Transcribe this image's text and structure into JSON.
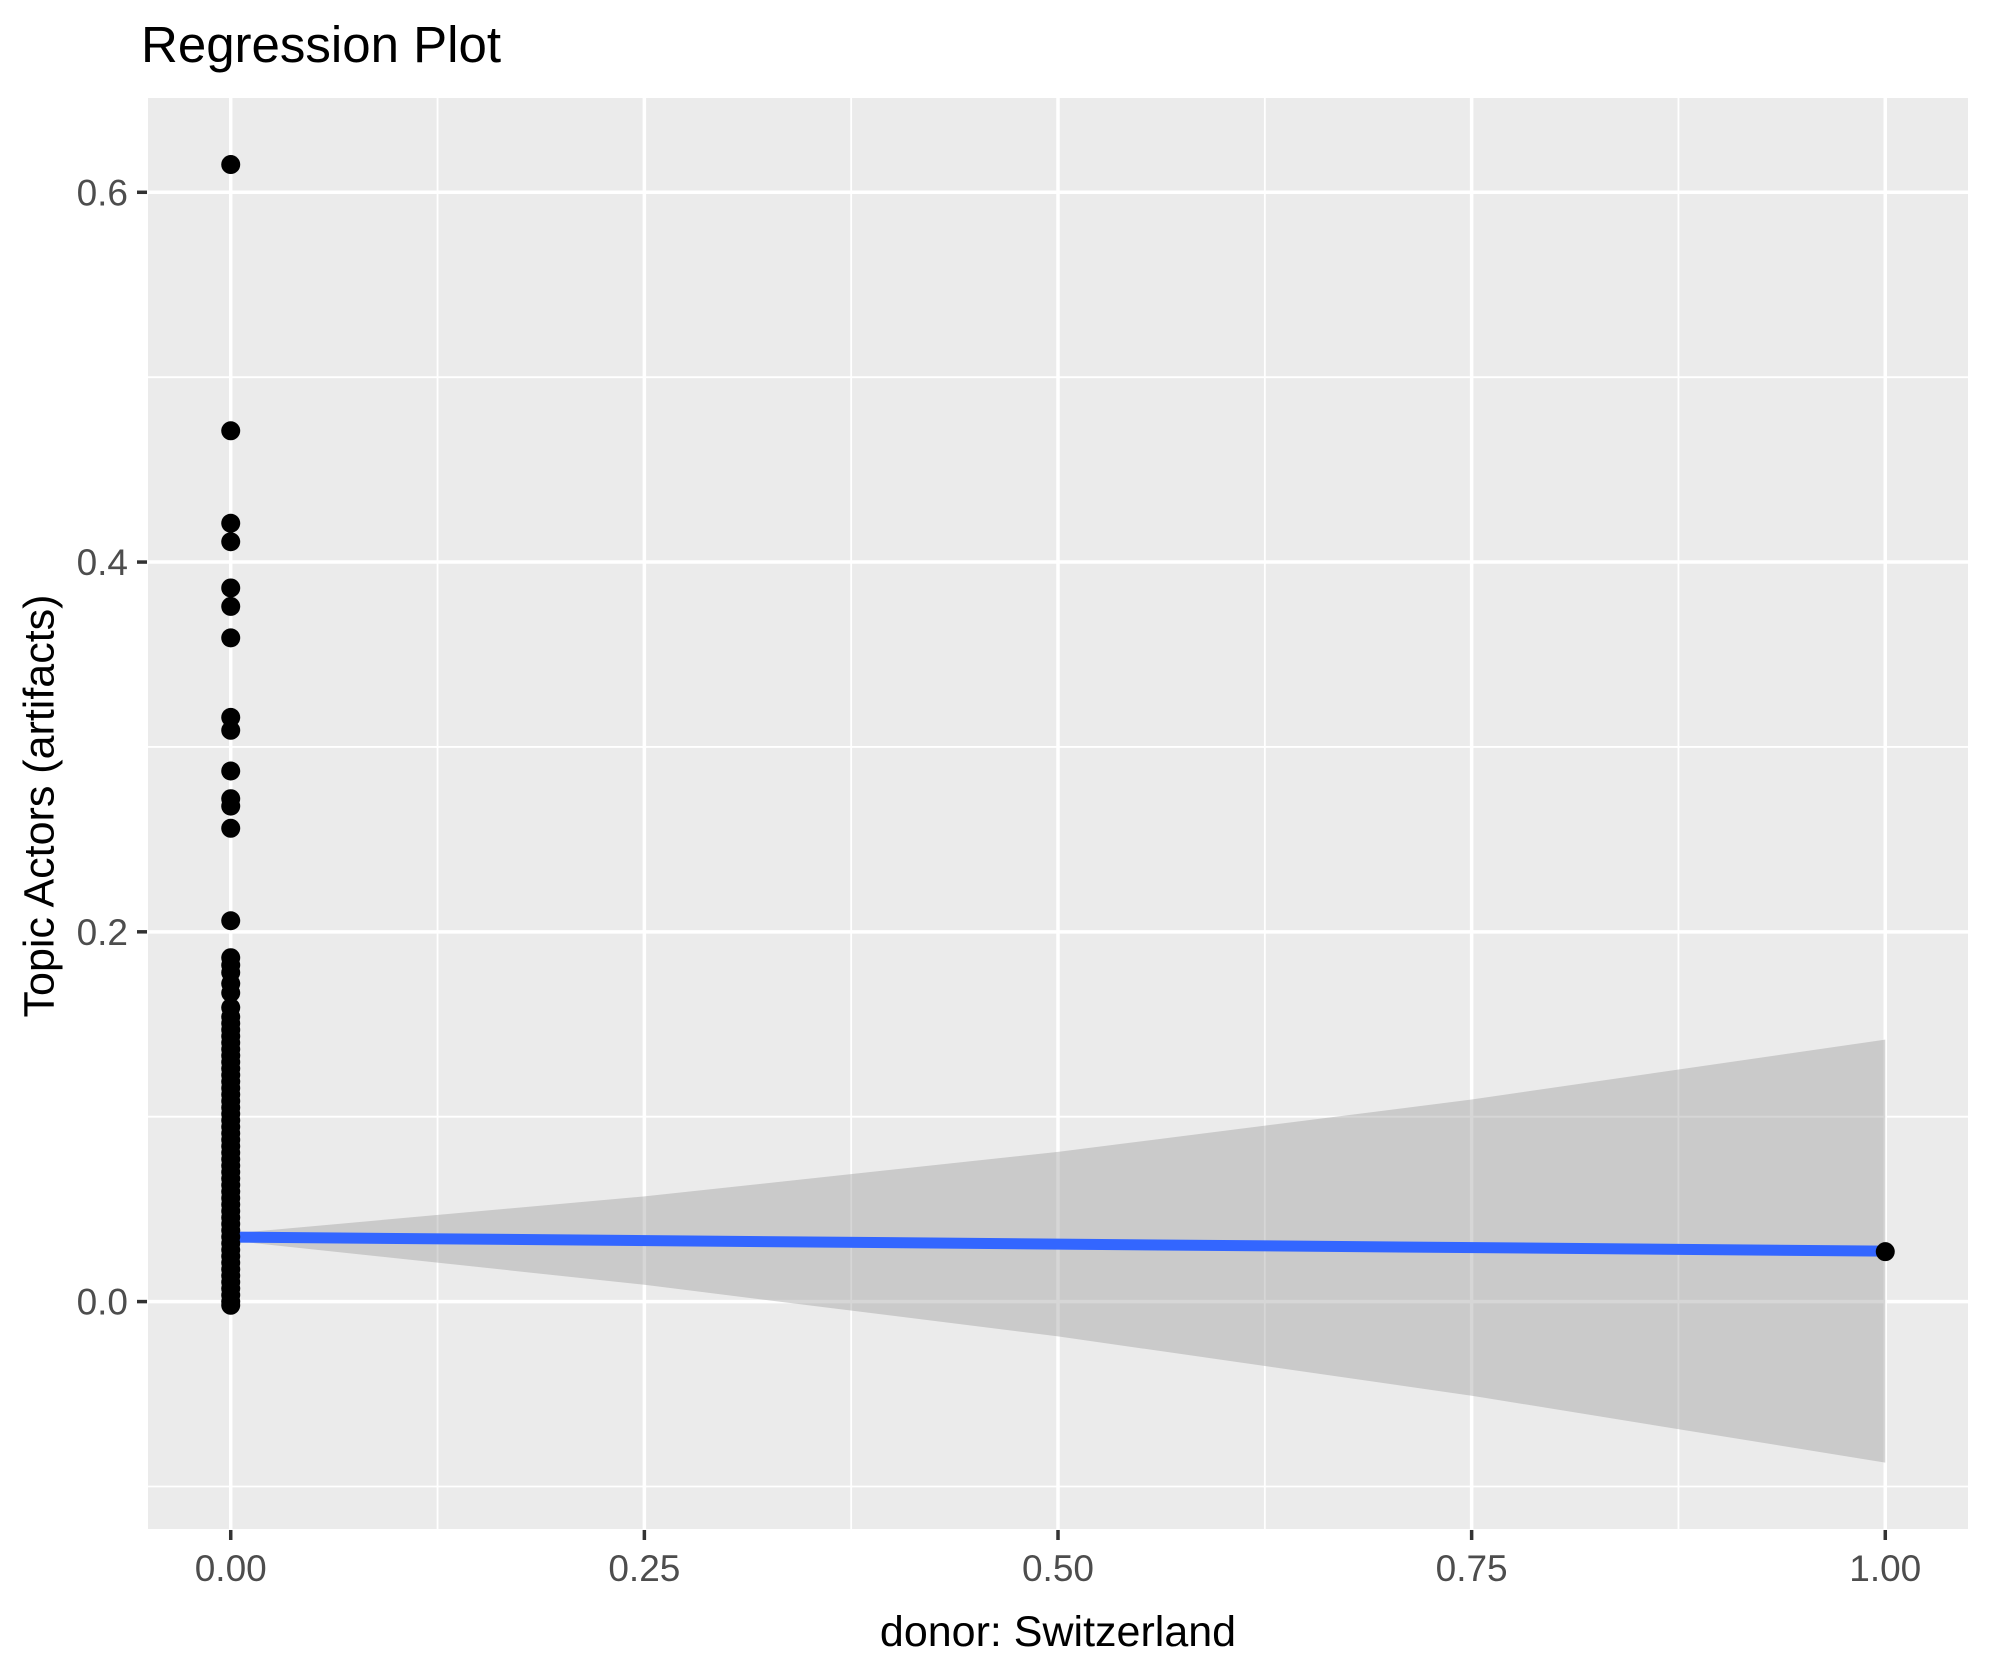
{
  "title": "Regression Plot",
  "chart_data": {
    "type": "scatter",
    "title": "Regression Plot",
    "xlabel": "donor: Switzerland",
    "ylabel": "Topic Actors (artifacts)",
    "xlim": [
      -0.05,
      1.05
    ],
    "ylim": [
      -0.123,
      0.651
    ],
    "grid": true,
    "legend_position": "none",
    "panel_bg": "#EBEBEB",
    "grid_color": "#FFFFFF",
    "tick_color": "#333333",
    "tick_label_color": "#4D4D4D",
    "point_color": "#000000",
    "line_color": "#3366FF",
    "band_color": "rgba(153,153,153,0.4)",
    "x_ticks": {
      "values": [
        0,
        0.25,
        0.5,
        0.75,
        1.0
      ],
      "labels": [
        "0.00",
        "0.25",
        "0.50",
        "0.75",
        "1.00"
      ]
    },
    "y_ticks": {
      "values": [
        0,
        0.2,
        0.4,
        0.6
      ],
      "labels": [
        "0.0",
        "0.2",
        "0.4",
        "0.6"
      ]
    },
    "x_minor": [
      0.125,
      0.375,
      0.625,
      0.875
    ],
    "y_minor": [
      -0.1,
      0.1,
      0.3,
      0.5
    ],
    "points": [
      [
        0,
        0.615
      ],
      [
        0,
        0.471
      ],
      [
        0,
        0.421
      ],
      [
        0,
        0.411
      ],
      [
        0,
        0.386
      ],
      [
        0,
        0.376
      ],
      [
        0,
        0.359
      ],
      [
        0,
        0.316
      ],
      [
        0,
        0.309
      ],
      [
        0,
        0.287
      ],
      [
        0,
        0.272
      ],
      [
        0,
        0.268
      ],
      [
        0,
        0.256
      ],
      [
        0,
        0.206
      ],
      [
        0,
        0.186
      ],
      [
        0,
        0.182
      ],
      [
        0,
        0.178
      ],
      [
        0,
        0.172
      ],
      [
        0,
        0.167
      ],
      [
        0,
        0.159
      ],
      [
        0,
        0.154
      ],
      [
        0,
        0.1505
      ],
      [
        0,
        0.147
      ],
      [
        0,
        0.1435
      ],
      [
        0,
        0.14
      ],
      [
        0,
        0.1365
      ],
      [
        0,
        0.133
      ],
      [
        0,
        0.1295
      ],
      [
        0,
        0.126
      ],
      [
        0,
        0.1225
      ],
      [
        0,
        0.119
      ],
      [
        0,
        0.1155
      ],
      [
        0,
        0.112
      ],
      [
        0,
        0.1085
      ],
      [
        0,
        0.105
      ],
      [
        0,
        0.1015
      ],
      [
        0,
        0.098
      ],
      [
        0,
        0.0945
      ],
      [
        0,
        0.091
      ],
      [
        0,
        0.0875
      ],
      [
        0,
        0.084
      ],
      [
        0,
        0.0805
      ],
      [
        0,
        0.077
      ],
      [
        0,
        0.0735
      ],
      [
        0,
        0.07
      ],
      [
        0,
        0.0665
      ],
      [
        0,
        0.063
      ],
      [
        0,
        0.0595
      ],
      [
        0,
        0.056
      ],
      [
        0,
        0.0525
      ],
      [
        0,
        0.049
      ],
      [
        0,
        0.0455
      ],
      [
        0,
        0.042
      ],
      [
        0,
        0.0385
      ],
      [
        0,
        0.035
      ],
      [
        0,
        0.0315
      ],
      [
        0,
        0.028
      ],
      [
        0,
        0.0245
      ],
      [
        0,
        0.021
      ],
      [
        0,
        0.0175
      ],
      [
        0,
        0.014
      ],
      [
        0,
        0.0105
      ],
      [
        0,
        0.007
      ],
      [
        0,
        0.0035
      ],
      [
        0,
        0.0
      ],
      [
        0,
        -0.002
      ],
      [
        1,
        0.027
      ]
    ],
    "regression_line": {
      "x": [
        0,
        1
      ],
      "y": [
        0.0349,
        0.0273
      ]
    },
    "confidence_band": {
      "x": [
        0,
        0.25,
        0.5,
        0.75,
        1.0
      ],
      "upper": [
        0.0368,
        0.0569,
        0.081,
        0.1093,
        0.1417
      ],
      "lower": [
        0.033,
        0.0091,
        -0.0188,
        -0.0509,
        -0.0871
      ]
    }
  }
}
